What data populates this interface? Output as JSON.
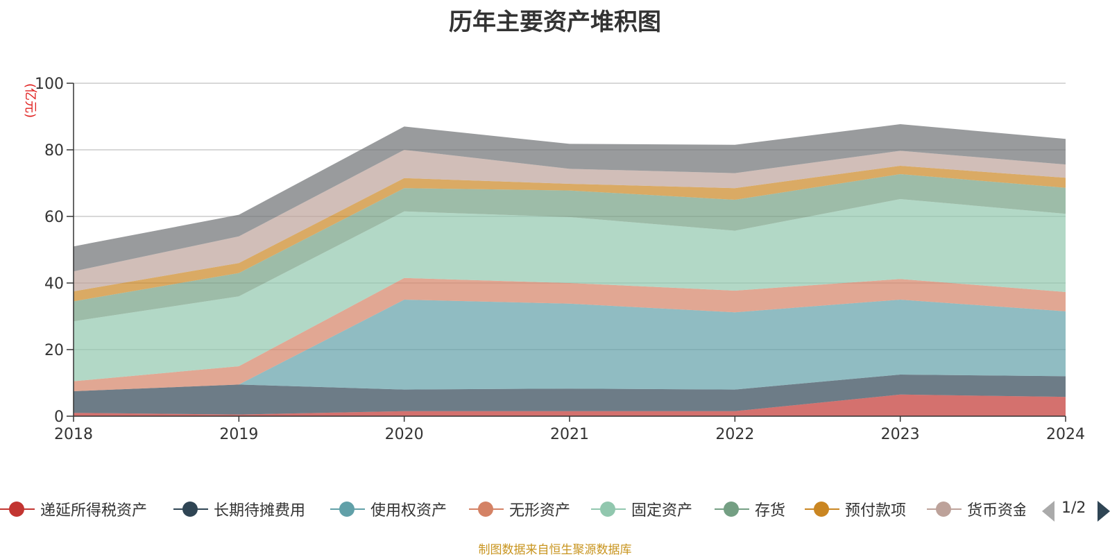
{
  "chart_data": {
    "type": "area",
    "stacked": true,
    "title": "历年主要资产堆积图",
    "ylabel": "(亿元)",
    "xlabel": "",
    "categories": [
      "2018",
      "2019",
      "2020",
      "2021",
      "2022",
      "2023",
      "2024"
    ],
    "ylim": [
      0,
      100
    ],
    "yticks": [
      0,
      20,
      40,
      60,
      80,
      100
    ],
    "grid": true,
    "legend_position": "bottom",
    "series": [
      {
        "name": "递延所得税资产",
        "color": "#c23531",
        "values": [
          1,
          0.5,
          1.5,
          1.5,
          1.5,
          6.5,
          5.8
        ]
      },
      {
        "name": "长期待摊费用",
        "color": "#2f4554",
        "values": [
          6.5,
          9,
          6.5,
          6.8,
          6.5,
          6,
          6.2
        ]
      },
      {
        "name": "使用权资产",
        "color": "#61a0a8",
        "values": [
          0,
          0,
          27,
          25.5,
          23.2,
          22.5,
          19.5
        ]
      },
      {
        "name": "无形资产",
        "color": "#d48265",
        "values": [
          3,
          5.5,
          6.5,
          6.2,
          6.5,
          6.2,
          5.8
        ]
      },
      {
        "name": "固定资产",
        "color": "#91c7ae",
        "values": [
          18,
          21,
          20,
          19.8,
          18,
          24,
          23.5
        ]
      },
      {
        "name": "存货",
        "color": "#749f83",
        "values": [
          6,
          7,
          7,
          8,
          9.3,
          7.5,
          7.8
        ]
      },
      {
        "name": "预付款项",
        "color": "#ca8622",
        "values": [
          3,
          3,
          3,
          2,
          3.5,
          2.5,
          3
        ]
      },
      {
        "name": "货币资金",
        "color": "#bda29a",
        "values": [
          6,
          8,
          8.5,
          4.5,
          4.5,
          4.5,
          4
        ]
      },
      {
        "name": "",
        "color": "#6e7074",
        "values": [
          7.5,
          6.5,
          7,
          7.5,
          8.5,
          8,
          7.7
        ]
      }
    ]
  },
  "legend": {
    "items": [
      "递延所得税资产",
      "长期待摊费用",
      "使用权资产",
      "无形资产",
      "固定资产",
      "存货",
      "预付款项",
      "货币资金"
    ],
    "page_text": "1/2"
  },
  "footer": "制图数据来自恒生聚源数据库"
}
